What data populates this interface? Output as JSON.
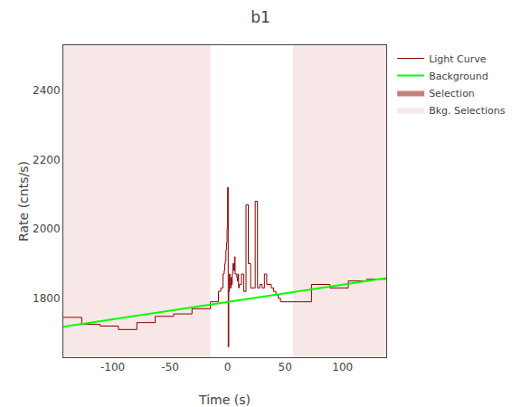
{
  "chart_data": {
    "type": "step",
    "title": "b1",
    "xlabel": "Time (s)",
    "ylabel": "Rate (cnts/s)",
    "xlim": [
      -143,
      138
    ],
    "ylim": [
      1630,
      2530
    ],
    "xticks": [
      -100,
      -50,
      0,
      50,
      100
    ],
    "yticks": [
      1800,
      2000,
      2200,
      2400
    ],
    "grid": false,
    "legend": "upper right",
    "series": [
      {
        "name": "Light Curve",
        "type": "step",
        "color": "#8B0000",
        "bins": [
          -143,
          -127,
          -111,
          -95,
          -79,
          -63,
          -47,
          -31,
          -15,
          -8,
          -6,
          -4,
          -3,
          -2.5,
          -2,
          -1.5,
          -1,
          -0.5,
          0,
          0.5,
          1,
          1.5,
          2,
          2.5,
          3,
          3.5,
          4,
          4.5,
          5,
          5.5,
          6,
          6.5,
          7,
          7.5,
          8,
          8.5,
          9,
          9.5,
          10,
          12,
          14,
          16,
          18,
          20,
          22,
          24,
          26,
          28,
          30,
          32,
          34,
          36,
          38,
          40,
          42,
          44,
          46,
          57,
          73,
          89,
          105,
          121,
          138
        ],
        "values": [
          1745,
          1725,
          1720,
          1710,
          1730,
          1748,
          1755,
          1770,
          1790,
          1820,
          1830,
          1870,
          1880,
          1900,
          1910,
          1940,
          1960,
          2000,
          2120,
          1660,
          1820,
          1870,
          1830,
          1830,
          1860,
          1840,
          1870,
          1900,
          1900,
          1880,
          1920,
          1870,
          1870,
          1870,
          1860,
          1850,
          1870,
          1830,
          1840,
          1870,
          1820,
          2070,
          1900,
          1830,
          1830,
          2080,
          1830,
          1840,
          1830,
          1870,
          1840,
          1840,
          1830,
          1820,
          1810,
          1800,
          1790,
          1790,
          1840,
          1830,
          1850,
          1855
        ]
      },
      {
        "name": "Background",
        "type": "line",
        "color": "#00FF00",
        "x": [
          -143,
          138
        ],
        "values": [
          1718,
          1858
        ]
      },
      {
        "name": "Selection",
        "type": "area",
        "color": "#8B0000",
        "regions": []
      },
      {
        "name": "Bkg. Selections",
        "type": "area",
        "color": "#f2d0d0",
        "regions": [
          [
            -143,
            -15
          ],
          [
            57,
            138
          ]
        ]
      }
    ]
  }
}
